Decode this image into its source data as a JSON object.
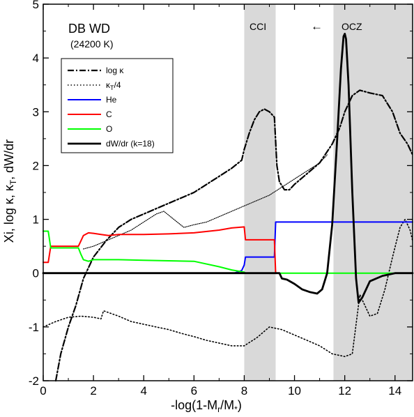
{
  "chart_data": {
    "type": "line",
    "title": "DB WD",
    "subtitle": "(24200 K)",
    "xlabel": "-log(1-M",
    "xlabel_sub1": "r",
    "xlabel_mid": "/M",
    "xlabel_sub2": "*",
    "xlabel_end": ")",
    "ylabel": "Xi, log κ, κ",
    "ylabel_sub": "T",
    "ylabel_end": ", dW/dr",
    "xlim": [
      0,
      14.7
    ],
    "ylim": [
      -2,
      5
    ],
    "xticks": [
      "0",
      "2",
      "4",
      "6",
      "8",
      "10",
      "12",
      "14"
    ],
    "yticks": [
      "-2",
      "-1",
      "0",
      "1",
      "2",
      "3",
      "4",
      "5"
    ],
    "grid": false,
    "legend_position": "upper-left",
    "regions": [
      {
        "label": "CCI",
        "x0": 8.0,
        "x1": 9.25,
        "color": "#d9d9d9"
      },
      {
        "label": "OCZ",
        "x0": 11.55,
        "x1": 14.7,
        "color": "#d9d9d9",
        "arrow": "←"
      }
    ],
    "legend": [
      {
        "label": "log κ",
        "style": "dashdot",
        "color": "#000000"
      },
      {
        "label": "κ",
        "sub": "T",
        "suffix": "/4",
        "style": "dotted",
        "color": "#000000"
      },
      {
        "label": "He",
        "style": "solid",
        "color": "#0000ff"
      },
      {
        "label": "C",
        "style": "solid",
        "color": "#ff0000"
      },
      {
        "label": "O",
        "style": "solid",
        "color": "#00ff00"
      },
      {
        "label": "dW/dr (k=18)",
        "style": "solid-thick",
        "color": "#000000"
      }
    ],
    "series": [
      {
        "name": "log κ",
        "style": "dashdot",
        "color": "#000000",
        "x": [
          0.5,
          0.7,
          1.0,
          1.3,
          1.6,
          2.0,
          2.5,
          3.0,
          3.5,
          4.0,
          4.5,
          5.0,
          5.5,
          6.0,
          6.5,
          7.0,
          7.5,
          7.9,
          8.0,
          8.2,
          8.4,
          8.6,
          8.8,
          9.0,
          9.2,
          9.3,
          9.4,
          9.6,
          9.8,
          10.0,
          10.5,
          11.0,
          11.5,
          11.8,
          12.0,
          12.3,
          12.6,
          13.0,
          13.5,
          13.9,
          14.2,
          14.5,
          14.7
        ],
        "y": [
          -2.0,
          -1.5,
          -1.0,
          -0.6,
          -0.1,
          0.3,
          0.6,
          0.85,
          1.0,
          1.1,
          1.2,
          1.3,
          1.4,
          1.5,
          1.65,
          1.8,
          1.95,
          2.1,
          2.3,
          2.6,
          2.85,
          3.0,
          3.05,
          3.0,
          2.9,
          2.0,
          1.7,
          1.55,
          1.55,
          1.65,
          1.85,
          2.05,
          2.4,
          2.7,
          3.0,
          3.3,
          3.4,
          3.35,
          3.3,
          3.0,
          2.6,
          2.4,
          2.2
        ]
      },
      {
        "name": "κT/4",
        "style": "dotted",
        "color": "#000000",
        "x": [
          0.0,
          0.5,
          1.0,
          1.5,
          2.0,
          2.3,
          2.4,
          3.0,
          3.5,
          4.0,
          4.5,
          5.0,
          5.5,
          6.0,
          6.5,
          7.0,
          7.5,
          8.0,
          8.5,
          9.0,
          9.5,
          10.0,
          10.5,
          11.0,
          11.5,
          12.0,
          12.3,
          12.6,
          13.0,
          13.3,
          13.6,
          13.9,
          14.2,
          14.4,
          14.6,
          14.7
        ],
        "y": [
          -1.0,
          -0.9,
          -0.82,
          -0.8,
          -0.82,
          -0.85,
          -0.7,
          -0.8,
          -0.9,
          -0.95,
          -1.0,
          -1.05,
          -1.12,
          -1.18,
          -1.25,
          -1.3,
          -1.35,
          -1.35,
          -1.2,
          -1.0,
          -1.05,
          -1.15,
          -1.25,
          -1.35,
          -1.5,
          -1.55,
          -1.5,
          -0.4,
          -0.8,
          -0.75,
          -0.3,
          0.3,
          0.85,
          1.0,
          0.8,
          0.6
        ]
      },
      {
        "name": "κT/4 upper",
        "style": "dotted-fine",
        "color": "#000000",
        "x": [
          1.6,
          2.0,
          2.5,
          3.0,
          3.5,
          4.0,
          4.5,
          4.8,
          5.2,
          5.6,
          6.0,
          6.5,
          7.0,
          7.5,
          8.0,
          8.5,
          9.0,
          9.5,
          10.0,
          10.5,
          11.0,
          11.3
        ],
        "y": [
          0.45,
          0.5,
          0.6,
          0.7,
          0.8,
          0.95,
          1.1,
          1.15,
          1.0,
          0.85,
          0.9,
          0.95,
          1.05,
          1.15,
          1.25,
          1.35,
          1.45,
          1.6,
          1.75,
          1.9,
          2.05,
          2.2
        ]
      },
      {
        "name": "He",
        "style": "solid",
        "color": "#0000ff",
        "x": [
          0.0,
          7.6,
          7.9,
          8.0,
          8.05,
          9.2,
          9.25,
          9.3,
          14.7
        ],
        "y": [
          0.0,
          0.0,
          0.05,
          0.15,
          0.3,
          0.3,
          0.95,
          0.95,
          0.95
        ]
      },
      {
        "name": "C",
        "style": "solid",
        "color": "#ff0000",
        "x": [
          0.0,
          0.2,
          0.3,
          1.4,
          1.5,
          1.6,
          1.8,
          2.0,
          2.3,
          2.6,
          3.0,
          4.0,
          5.0,
          6.0,
          7.0,
          7.5,
          8.0,
          8.05,
          9.2,
          9.25,
          9.3
        ],
        "y": [
          0.2,
          0.2,
          0.5,
          0.5,
          0.6,
          0.7,
          0.75,
          0.74,
          0.72,
          0.7,
          0.72,
          0.72,
          0.73,
          0.75,
          0.8,
          0.84,
          0.86,
          0.62,
          0.62,
          0.0,
          0.0
        ]
      },
      {
        "name": "O",
        "style": "solid",
        "color": "#00ff00",
        "x": [
          0.0,
          0.2,
          0.3,
          1.4,
          1.5,
          1.6,
          1.8,
          2.0,
          2.5,
          3.0,
          4.0,
          5.0,
          6.0,
          7.0,
          7.5,
          8.0,
          8.05,
          9.3,
          14.7
        ],
        "y": [
          0.78,
          0.78,
          0.47,
          0.47,
          0.35,
          0.25,
          0.22,
          0.25,
          0.25,
          0.25,
          0.24,
          0.23,
          0.22,
          0.12,
          0.06,
          0.02,
          0.0,
          0.0,
          0.0
        ]
      },
      {
        "name": "dW/dr (k=18)",
        "style": "solid-thick",
        "color": "#000000",
        "x": [
          0.0,
          9.4,
          9.5,
          9.7,
          10.0,
          10.3,
          10.6,
          10.9,
          11.1,
          11.3,
          11.5,
          11.7,
          11.85,
          11.95,
          12.0,
          12.05,
          12.15,
          12.3,
          12.45,
          12.55,
          12.7,
          13.0,
          13.5,
          14.0,
          14.7
        ],
        "y": [
          0.0,
          0.0,
          -0.1,
          -0.12,
          -0.2,
          -0.3,
          -0.35,
          -0.38,
          -0.3,
          0.0,
          0.9,
          2.5,
          3.8,
          4.4,
          4.45,
          4.35,
          3.5,
          1.5,
          -0.1,
          -0.55,
          -0.45,
          -0.15,
          -0.05,
          0.0,
          0.0
        ]
      }
    ]
  }
}
